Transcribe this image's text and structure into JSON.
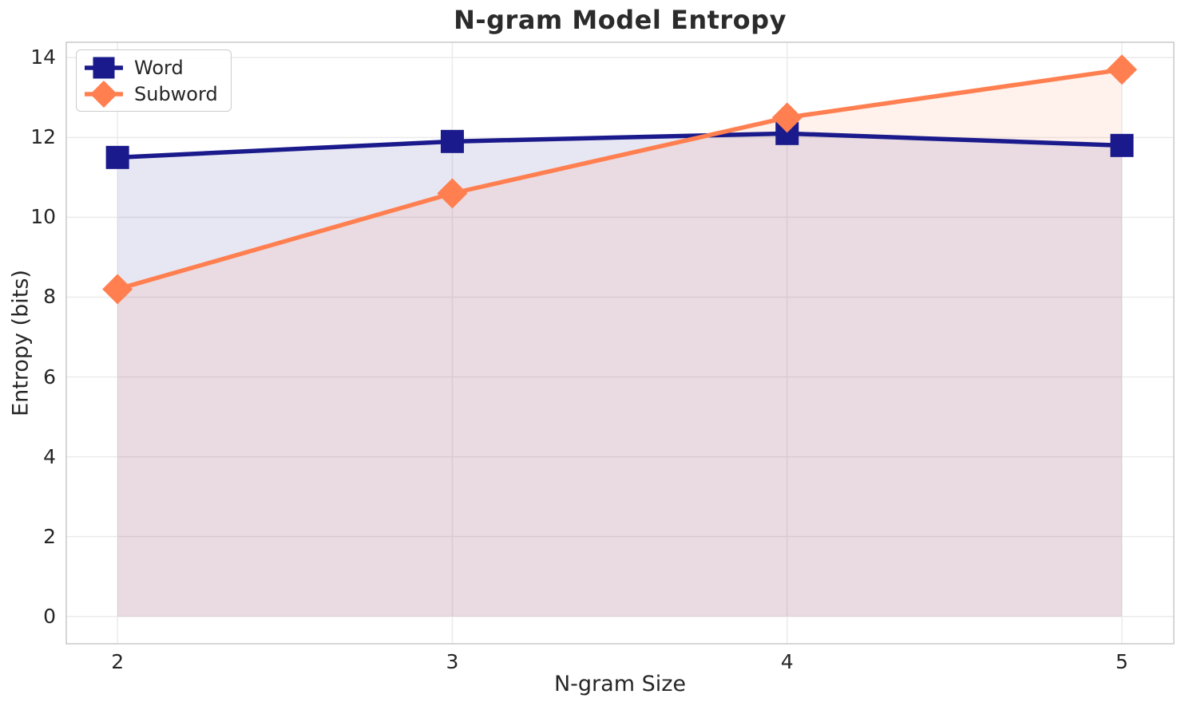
{
  "figure": {
    "background": "#ffffff",
    "text_color": "#262626",
    "title_color": "#2b2b2b",
    "grid_color": "#ebebeb",
    "spine_color": "#cccccc"
  },
  "chart_data": {
    "type": "line",
    "title": "N-gram Model Entropy",
    "xlabel": "N-gram Size",
    "ylabel": "Entropy (bits)",
    "x": [
      2,
      3,
      4,
      5
    ],
    "series": [
      {
        "name": "Word",
        "color": "#1a1a8c",
        "marker": "square",
        "values": [
          11.5,
          11.9,
          12.1,
          11.8
        ]
      },
      {
        "name": "Subword",
        "color": "#ff7f50",
        "marker": "diamond",
        "values": [
          8.2,
          10.6,
          12.5,
          13.7
        ]
      }
    ],
    "fill_to_zero": true,
    "fill_alpha": 0.105,
    "xticks": [
      2,
      3,
      4,
      5
    ],
    "yticks": [
      0,
      2,
      4,
      6,
      8,
      10,
      12,
      14
    ],
    "xlim": [
      1.847,
      5.155
    ],
    "ylim": [
      -0.685,
      14.385
    ],
    "grid": true,
    "legend_position": "upper-left",
    "line_width": 5.5
  }
}
